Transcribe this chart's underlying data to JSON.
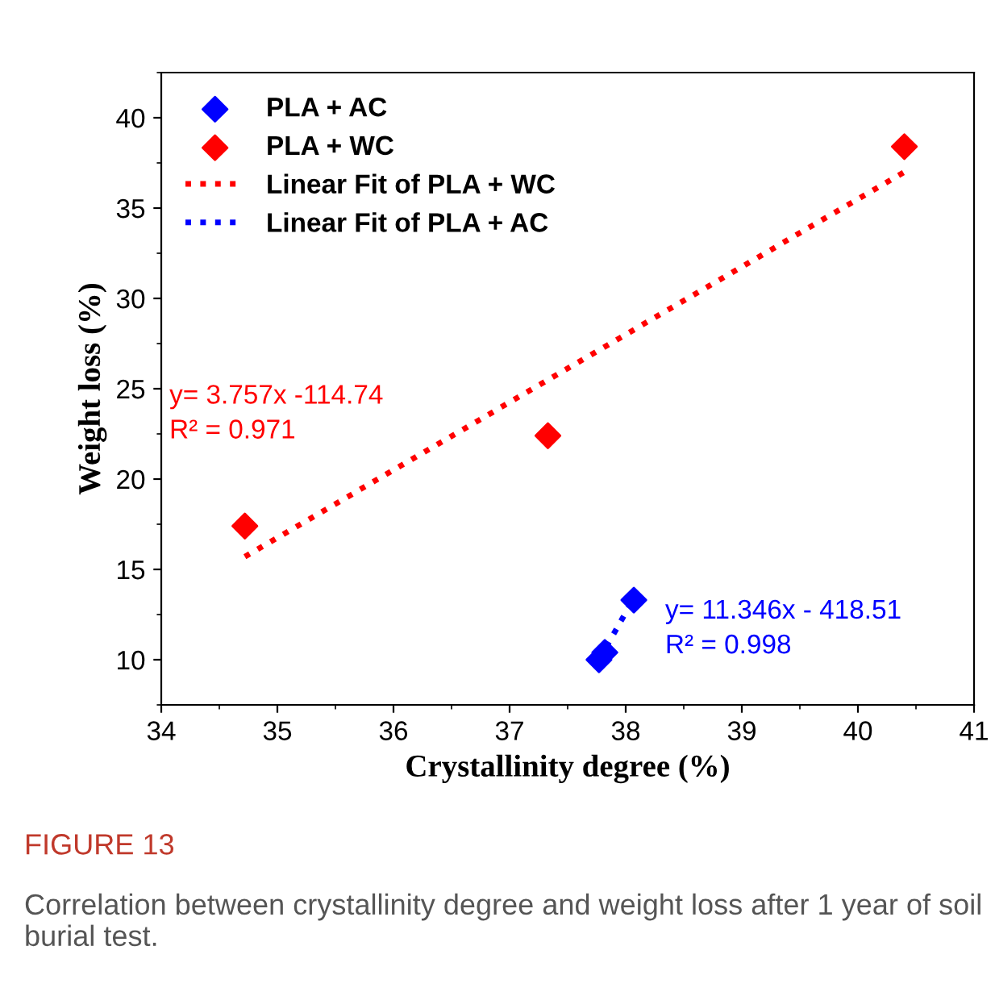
{
  "chart_data": {
    "type": "scatter",
    "xlabel": "Crystallinity degree (%)",
    "ylabel": "Weight loss (%)",
    "xlim": [
      34,
      41
    ],
    "xticks": [
      34,
      35,
      36,
      37,
      38,
      39,
      40,
      41
    ],
    "ylim": [
      7.5,
      42.5
    ],
    "yticks": [
      10,
      15,
      20,
      25,
      30,
      35,
      40
    ],
    "marker": "diamond",
    "grid": false,
    "legend": "top left",
    "series": [
      {
        "name": "PLA + AC",
        "color": "#0000ff",
        "x": [
          37.77,
          37.82,
          38.07
        ],
        "values": [
          10.0,
          10.4,
          13.3
        ]
      },
      {
        "name": "PLA + WC",
        "color": "#ff0000",
        "x": [
          34.72,
          37.33,
          40.4
        ],
        "values": [
          17.4,
          22.4,
          38.4
        ]
      },
      {
        "name": "Linear Fit of PLA + WC",
        "type": "line",
        "line_style": "dotted",
        "marker": "none",
        "color": "#ff0000",
        "x": [
          34.72,
          40.4
        ],
        "values": [
          15.7,
          37.0
        ]
      },
      {
        "name": "Linear Fit of PLA + AC",
        "type": "line",
        "line_style": "dotted",
        "marker": "none",
        "color": "#0000ff",
        "x": [
          37.77,
          38.07
        ],
        "values": [
          10.0,
          13.4
        ]
      }
    ],
    "annotations": [
      "y= 3.757x -114.74\nR² = 0.971",
      "y= 11.346x - 418.51\nR² = 0.998",
      "FIGURE 13",
      "Correlation between crystallinity degree and weight loss after 1 year of soil burial test."
    ]
  }
}
